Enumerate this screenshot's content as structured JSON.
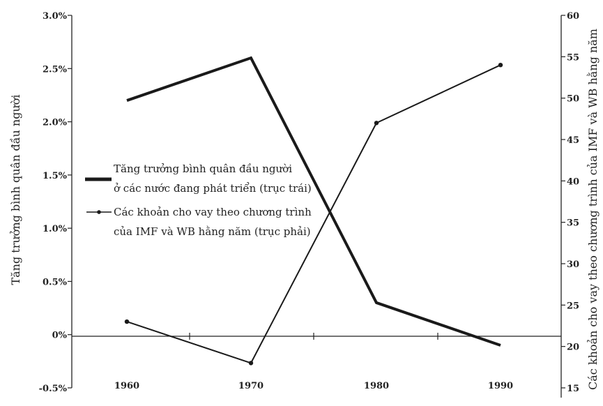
{
  "chart_data": {
    "type": "line",
    "x": [
      "1960",
      "1970",
      "1980",
      "1990"
    ],
    "left_axis": {
      "label": "Tăng trưởng bình quân đầu người",
      "ylim": [
        -0.5,
        3.0
      ],
      "ticks": [
        -0.5,
        0,
        0.5,
        1.0,
        1.5,
        2.0,
        2.5,
        3.0
      ],
      "tick_labels": [
        "-0.5%",
        "0%",
        "0.5%",
        "1.0%",
        "1.5%",
        "2.0%",
        "2.5%",
        "3.0%"
      ]
    },
    "right_axis": {
      "label": "Các khoản cho vay theo chương trình của IMF và WB hằng năm",
      "ylim": [
        15,
        60
      ],
      "ticks": [
        15,
        20,
        25,
        30,
        35,
        40,
        45,
        50,
        55,
        60
      ],
      "tick_labels": [
        "15",
        "20",
        "25",
        "30",
        "35",
        "40",
        "45",
        "50",
        "55",
        "60"
      ]
    },
    "series": [
      {
        "name": "Tăng trưởng bình quân đầu người ở các nước đang phát triển (trục trái)",
        "legend_lines": [
          "Tăng trưởng bình quân đầu người",
          "ở các nước đang phát triển (trục trái)"
        ],
        "axis": "left",
        "values": [
          2.2,
          2.6,
          0.3,
          -0.1
        ],
        "style": "thick"
      },
      {
        "name": "Các khoản cho vay theo chương trình của IMF và WB hằng năm (trục phải)",
        "legend_lines": [
          "Các khoản cho vay theo chương trình",
          "của IMF và WB hằng năm (trục phải)"
        ],
        "axis": "right",
        "values": [
          23,
          18,
          47,
          54
        ],
        "style": "thin-marker"
      }
    ],
    "grid": false,
    "legend_position": "center-left"
  }
}
